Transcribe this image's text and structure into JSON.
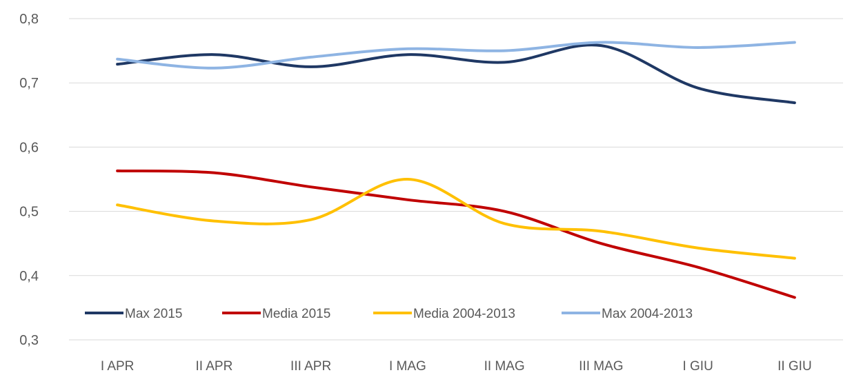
{
  "chart_data": {
    "type": "line",
    "title": "",
    "xlabel": "",
    "ylabel": "",
    "categories": [
      "I APR",
      "II APR",
      "III APR",
      "I MAG",
      "II MAG",
      "III MAG",
      "I GIU",
      "II GIU"
    ],
    "ylim": [
      0.3,
      0.8
    ],
    "yticks": [
      0.3,
      0.4,
      0.5,
      0.6,
      0.7,
      0.8
    ],
    "ytick_labels": [
      "0,3",
      "0,4",
      "0,5",
      "0,6",
      "0,7",
      "0,8"
    ],
    "grid": true,
    "smooth": true,
    "legend_position": "bottom-left-inside",
    "series": [
      {
        "name": "Max 2015",
        "color": "#1f3864",
        "values": [
          0.729,
          0.744,
          0.725,
          0.744,
          0.732,
          0.758,
          0.692,
          0.669
        ]
      },
      {
        "name": "Media 2015",
        "color": "#c00000",
        "values": [
          0.563,
          0.56,
          0.538,
          0.518,
          0.5,
          0.45,
          0.413,
          0.366
        ]
      },
      {
        "name": "Media 2004-2013",
        "color": "#ffc000",
        "values": [
          0.51,
          0.485,
          0.487,
          0.55,
          0.481,
          0.469,
          0.443,
          0.427
        ]
      },
      {
        "name": "Max 2004-2013",
        "color": "#8eb4e3",
        "values": [
          0.737,
          0.723,
          0.74,
          0.753,
          0.75,
          0.763,
          0.755,
          0.763
        ]
      }
    ]
  }
}
